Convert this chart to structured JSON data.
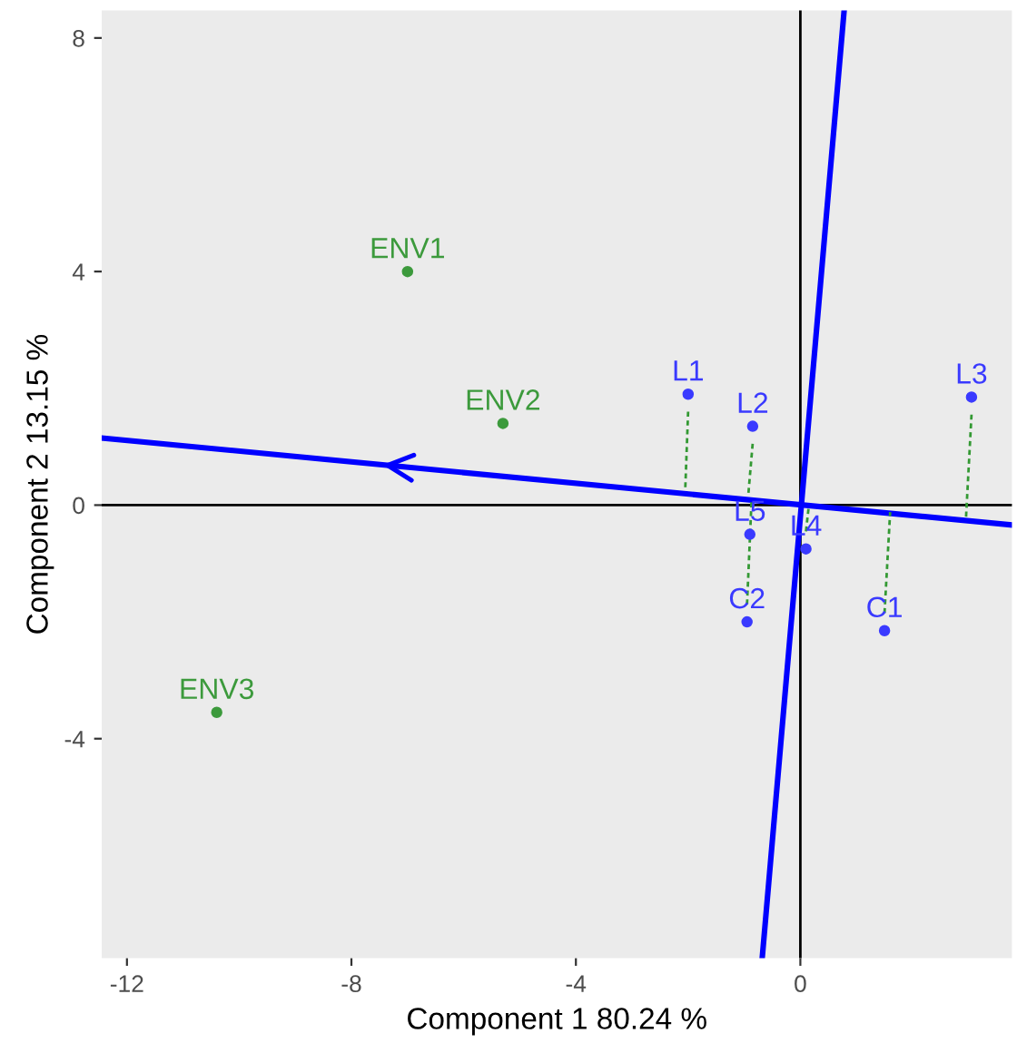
{
  "chart_data": {
    "type": "scatter",
    "xlabel": "Component 1 80.24 %",
    "ylabel": "Component 2 13.15 %",
    "xlim": [
      -12.45,
      3.77
    ],
    "ylim": [
      -7.76,
      8.47
    ],
    "xticks": [
      -12,
      -8,
      -4,
      0
    ],
    "yticks": [
      -4,
      0,
      4,
      8
    ],
    "grid": false,
    "legend": false,
    "series": [
      {
        "type": "line",
        "color": "#000000",
        "x": [
          -12.45,
          3.77
        ],
        "values": [
          0,
          0
        ]
      },
      {
        "type": "line",
        "color": "#000000",
        "x": [
          0,
          0
        ],
        "values": [
          -7.76,
          8.47
        ]
      },
      {
        "type": "line",
        "color": "#0000ff",
        "x": [
          -12.45,
          3.77
        ],
        "values": [
          1.15,
          -0.34
        ]
      },
      {
        "type": "line",
        "color": "#0000ff",
        "x": [
          -0.68,
          0.78
        ],
        "values": [
          -7.76,
          8.47
        ]
      },
      {
        "type": "line",
        "color": "#339933",
        "line_style": "dashed",
        "x": [
          -2.0,
          -2.05
        ],
        "values": [
          1.6,
          0.3
        ]
      },
      {
        "type": "line",
        "color": "#339933",
        "line_style": "dashed",
        "x": [
          -0.85,
          -0.93
        ],
        "values": [
          1.05,
          0.15
        ]
      },
      {
        "type": "line",
        "color": "#339933",
        "line_style": "dashed",
        "x": [
          3.05,
          2.95
        ],
        "values": [
          1.55,
          -0.25
        ]
      },
      {
        "type": "line",
        "color": "#339933",
        "line_style": "dashed",
        "x": [
          0.1,
          0.15
        ],
        "values": [
          -0.45,
          -0.02
        ]
      },
      {
        "type": "line",
        "color": "#339933",
        "line_style": "dashed",
        "x": [
          -0.95,
          -0.87
        ],
        "values": [
          -1.7,
          0.07
        ]
      },
      {
        "type": "line",
        "color": "#339933",
        "line_style": "dashed",
        "x": [
          1.5,
          1.6
        ],
        "values": [
          -1.85,
          -0.12
        ]
      },
      {
        "marker": "circle",
        "color": "#3a3aff",
        "x": [
          -2.0,
          -0.85,
          3.05,
          -0.9,
          0.1,
          -0.95,
          1.5
        ],
        "values": [
          1.9,
          1.35,
          1.85,
          -0.5,
          -0.75,
          -2.0,
          -2.15
        ],
        "value_labels": [
          "L1",
          "L2",
          "L3",
          "L5",
          "L4",
          "C2",
          "C1"
        ]
      },
      {
        "marker": "circle",
        "color": "#3c9a3c",
        "x": [
          -7.0,
          -5.3,
          -10.4
        ],
        "values": [
          4.0,
          1.4,
          -3.55
        ],
        "value_labels": [
          "ENV1",
          "ENV2",
          "ENV3"
        ]
      }
    ]
  }
}
